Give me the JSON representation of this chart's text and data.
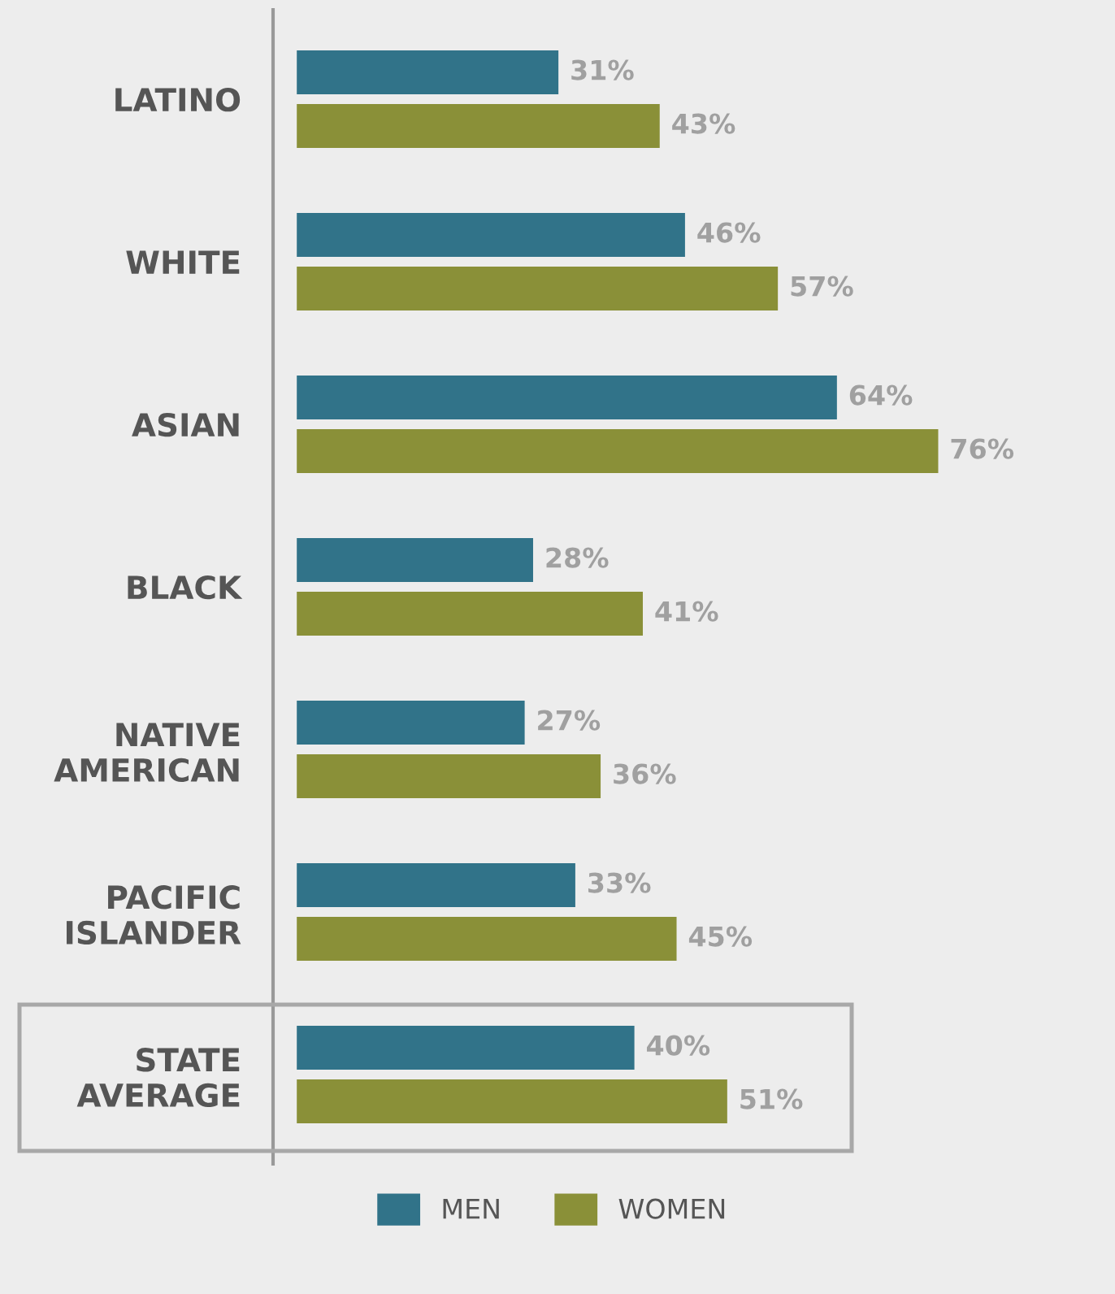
{
  "chart_data": {
    "type": "bar",
    "orientation": "horizontal",
    "categories": [
      "LATINO",
      "WHITE",
      "ASIAN",
      "BLACK",
      "NATIVE\nAMERICAN",
      "PACIFIC\nISLANDER",
      "STATE\nAVERAGE"
    ],
    "series": [
      {
        "name": "MEN",
        "color": "#317389",
        "values": [
          31,
          46,
          64,
          28,
          27,
          33,
          40
        ],
        "value_labels": [
          "31%",
          "46%",
          "64%",
          "28%",
          "27%",
          "33%",
          "40%"
        ]
      },
      {
        "name": "WOMEN",
        "color": "#8a9038",
        "values": [
          43,
          57,
          76,
          41,
          36,
          45,
          51
        ],
        "value_labels": [
          "43%",
          "57%",
          "76%",
          "41%",
          "36%",
          "45%",
          "51%"
        ]
      }
    ],
    "legend": "bottom",
    "grid": false
  }
}
